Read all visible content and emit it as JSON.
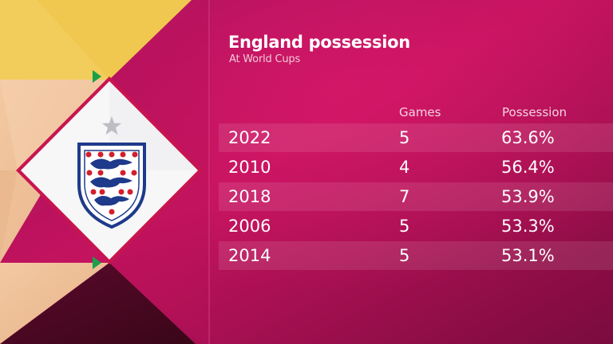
{
  "title": "England possession",
  "subtitle": "At World Cups",
  "columns": {
    "games": "Games",
    "possession": "Possession"
  },
  "chart_data": {
    "type": "table",
    "title": "England possession",
    "subtitle": "At World Cups",
    "columns": [
      "",
      "Games",
      "Possession"
    ],
    "rows": [
      {
        "year": "2022",
        "games": "5",
        "possession": "63.6%"
      },
      {
        "year": "2010",
        "games": "4",
        "possession": "56.4%"
      },
      {
        "year": "2018",
        "games": "7",
        "possession": "53.9%"
      },
      {
        "year": "2006",
        "games": "5",
        "possession": "53.3%"
      },
      {
        "year": "2014",
        "games": "5",
        "possession": "53.1%"
      }
    ]
  },
  "colors": {
    "background": "#8e0d4a",
    "accent_gold": "#f2cc55",
    "accent_green": "#1aa04a",
    "crest_red": "#d21f2b",
    "crest_blue": "#1e3a8a"
  },
  "icons": [
    "three-lions-crest-icon",
    "star-icon",
    "play-triangle-icon"
  ]
}
